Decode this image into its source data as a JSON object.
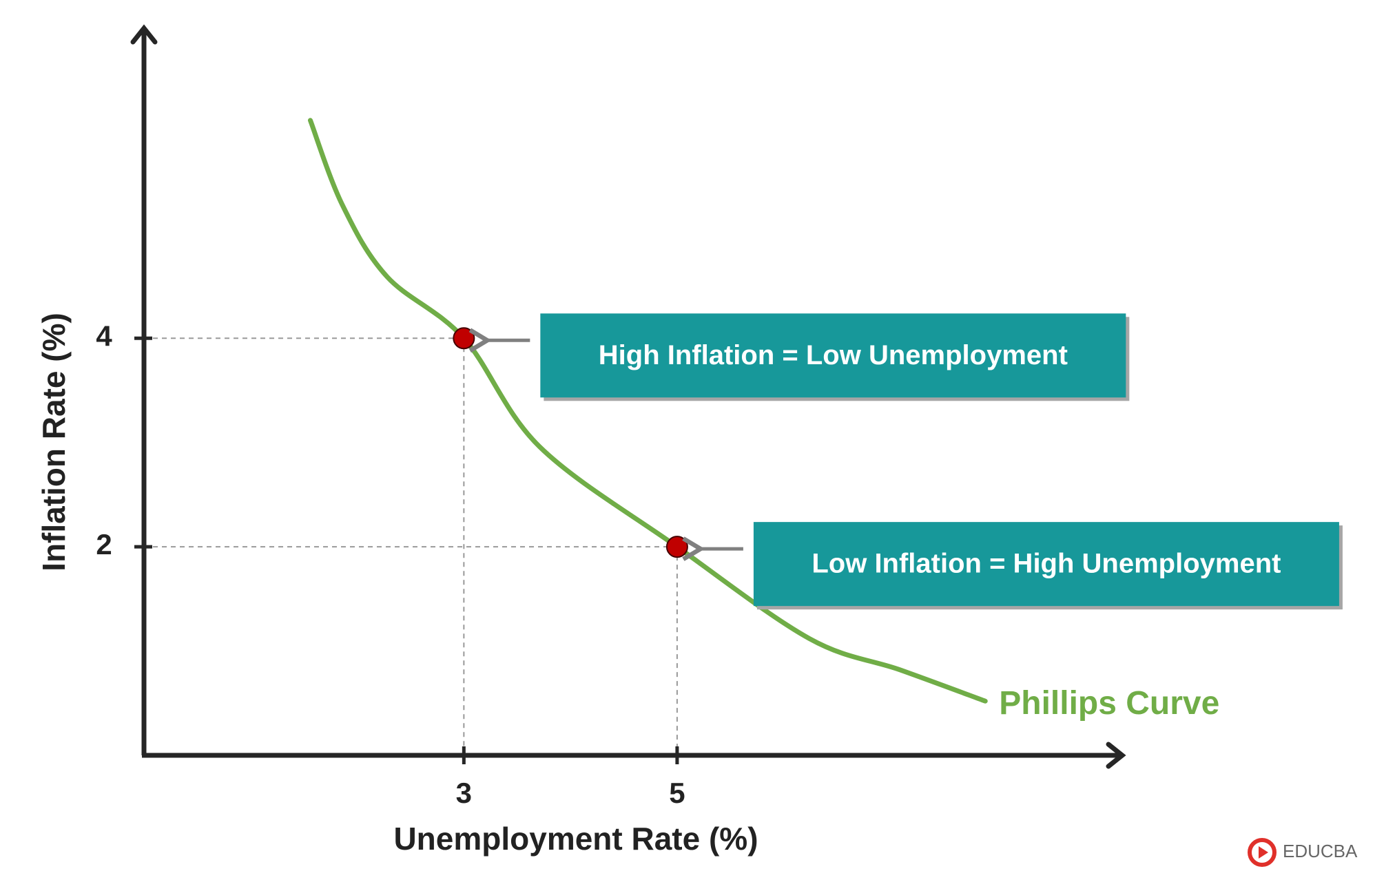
{
  "chart_data": {
    "type": "line",
    "x_label": "Unemployment Rate (%)",
    "y_label": "Inflation Rate (%)",
    "xlim": [
      0,
      9.2
    ],
    "ylim": [
      0,
      7
    ],
    "xticks": [
      3,
      5
    ],
    "yticks": [
      2,
      4
    ],
    "series": [
      {
        "name": "Phillips Curve",
        "color": "#70ad47",
        "x": [
          1.56,
          1.86,
          2.28,
          3,
          3.71,
          5,
          6.24,
          7.09,
          7.89
        ],
        "values": [
          6.09,
          5.28,
          4.59,
          4,
          2.96,
          2,
          1.12,
          0.82,
          0.52
        ]
      }
    ],
    "points": {
      "color": "#c00000",
      "x": [
        3,
        5
      ],
      "values": [
        4,
        2
      ]
    },
    "annotations": [
      {
        "text": "High Inflation = Low Unemployment",
        "color": "#17989a"
      },
      {
        "text": "Low Inflation = High Unemployment",
        "color": "#17989a"
      }
    ],
    "watermark": "EDUCBA"
  }
}
